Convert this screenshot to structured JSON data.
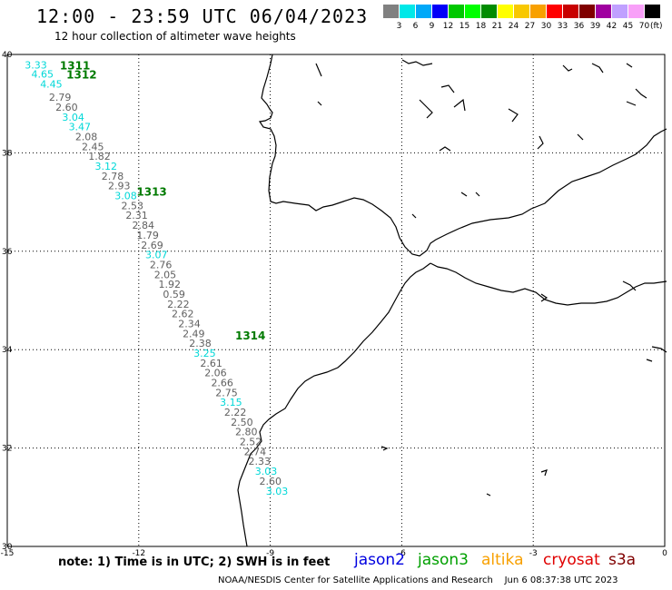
{
  "header": {
    "title": "12:00 - 23:59 UTC 06/04/2023",
    "subtitle": "12 hour collection of altimeter wave heights"
  },
  "legend": {
    "colors": [
      "#808080",
      "#00e8e8",
      "#00a8f8",
      "#0000f8",
      "#00c800",
      "#00ff00",
      "#008c00",
      "#ffff00",
      "#f8c800",
      "#f8a000",
      "#ff0000",
      "#c80000",
      "#800000",
      "#a000a0",
      "#c0a0ff",
      "#f8a0f8",
      "#000000"
    ],
    "labels": [
      "3",
      "6",
      "9",
      "12",
      "15",
      "18",
      "21",
      "24",
      "27",
      "30",
      "33",
      "36",
      "39",
      "42",
      "45",
      "70"
    ],
    "unit": "(ft)"
  },
  "axes": {
    "lon_labels": [
      "-15",
      "-12",
      "-9",
      "-6",
      "-3",
      "0"
    ],
    "lat_labels": [
      "40",
      "38",
      "36",
      "34",
      "32",
      "30"
    ],
    "lon_values": [
      -15,
      -12,
      -9,
      -6,
      -3,
      0
    ],
    "lat_values": [
      40,
      38,
      36,
      34,
      32,
      30
    ],
    "lon_range": [
      -15,
      0
    ],
    "lat_range": [
      30,
      40
    ],
    "grid": true
  },
  "times": [
    {
      "text": "1311",
      "lon": -13.8,
      "lat": 39.79,
      "color": "#007a00"
    },
    {
      "text": "1312",
      "lon": -13.65,
      "lat": 39.6,
      "color": "#007a00"
    },
    {
      "text": "1313",
      "lon": -12.05,
      "lat": 37.22,
      "color": "#007a00"
    },
    {
      "text": "1314",
      "lon": -9.8,
      "lat": 34.3,
      "color": "#007a00"
    }
  ],
  "wave_heights": [
    {
      "v": "3.33",
      "lon": -14.6,
      "lat": 39.79,
      "c": "#00d8d8"
    },
    {
      "v": "4.65",
      "lon": -14.45,
      "lat": 39.6,
      "c": "#00d8d8"
    },
    {
      "v": "4.45",
      "lon": -14.25,
      "lat": 39.4,
      "c": "#00d8d8"
    },
    {
      "v": "2.79",
      "lon": -14.05,
      "lat": 39.13,
      "c": "#606060"
    },
    {
      "v": "2.60",
      "lon": -13.9,
      "lat": 38.93,
      "c": "#606060"
    },
    {
      "v": "3.04",
      "lon": -13.75,
      "lat": 38.73,
      "c": "#00d8d8"
    },
    {
      "v": "3.47",
      "lon": -13.6,
      "lat": 38.53,
      "c": "#00d8d8"
    },
    {
      "v": "2.08",
      "lon": -13.45,
      "lat": 38.33,
      "c": "#606060"
    },
    {
      "v": "2.45",
      "lon": -13.3,
      "lat": 38.13,
      "c": "#606060"
    },
    {
      "v": "1.82",
      "lon": -13.15,
      "lat": 37.93,
      "c": "#606060"
    },
    {
      "v": "3.12",
      "lon": -13.0,
      "lat": 37.73,
      "c": "#00d8d8"
    },
    {
      "v": "2.78",
      "lon": -12.85,
      "lat": 37.53,
      "c": "#606060"
    },
    {
      "v": "2.93",
      "lon": -12.7,
      "lat": 37.33,
      "c": "#606060"
    },
    {
      "v": "3.08",
      "lon": -12.55,
      "lat": 37.13,
      "c": "#00d8d8"
    },
    {
      "v": "2.53",
      "lon": -12.4,
      "lat": 36.93,
      "c": "#606060"
    },
    {
      "v": "2.31",
      "lon": -12.3,
      "lat": 36.73,
      "c": "#606060"
    },
    {
      "v": "2.84",
      "lon": -12.15,
      "lat": 36.53,
      "c": "#606060"
    },
    {
      "v": "1.79",
      "lon": -12.05,
      "lat": 36.33,
      "c": "#606060"
    },
    {
      "v": "2.69",
      "lon": -11.95,
      "lat": 36.13,
      "c": "#606060"
    },
    {
      "v": "3.07",
      "lon": -11.85,
      "lat": 35.93,
      "c": "#00d8d8"
    },
    {
      "v": "2.76",
      "lon": -11.75,
      "lat": 35.73,
      "c": "#606060"
    },
    {
      "v": "2.05",
      "lon": -11.65,
      "lat": 35.53,
      "c": "#606060"
    },
    {
      "v": "1.92",
      "lon": -11.55,
      "lat": 35.33,
      "c": "#606060"
    },
    {
      "v": "0.59",
      "lon": -11.45,
      "lat": 35.13,
      "c": "#606060"
    },
    {
      "v": "2.22",
      "lon": -11.35,
      "lat": 34.93,
      "c": "#606060"
    },
    {
      "v": "2.62",
      "lon": -11.25,
      "lat": 34.73,
      "c": "#606060"
    },
    {
      "v": "2.34",
      "lon": -11.1,
      "lat": 34.53,
      "c": "#606060"
    },
    {
      "v": "2.49",
      "lon": -11.0,
      "lat": 34.33,
      "c": "#606060"
    },
    {
      "v": "2.38",
      "lon": -10.85,
      "lat": 34.13,
      "c": "#606060"
    },
    {
      "v": "3.25",
      "lon": -10.75,
      "lat": 33.93,
      "c": "#00d8d8"
    },
    {
      "v": "2.61",
      "lon": -10.6,
      "lat": 33.73,
      "c": "#606060"
    },
    {
      "v": "2.06",
      "lon": -10.5,
      "lat": 33.53,
      "c": "#606060"
    },
    {
      "v": "2.66",
      "lon": -10.35,
      "lat": 33.33,
      "c": "#606060"
    },
    {
      "v": "2.75",
      "lon": -10.25,
      "lat": 33.13,
      "c": "#606060"
    },
    {
      "v": "3.15",
      "lon": -10.15,
      "lat": 32.93,
      "c": "#00d8d8"
    },
    {
      "v": "2.22",
      "lon": -10.05,
      "lat": 32.73,
      "c": "#606060"
    },
    {
      "v": "2.50",
      "lon": -9.9,
      "lat": 32.53,
      "c": "#606060"
    },
    {
      "v": "2.80",
      "lon": -9.8,
      "lat": 32.33,
      "c": "#606060"
    },
    {
      "v": "2.52",
      "lon": -9.7,
      "lat": 32.13,
      "c": "#606060"
    },
    {
      "v": "2.74",
      "lon": -9.6,
      "lat": 31.93,
      "c": "#606060"
    },
    {
      "v": "2.33",
      "lon": -9.5,
      "lat": 31.73,
      "c": "#606060"
    },
    {
      "v": "3.03",
      "lon": -9.35,
      "lat": 31.53,
      "c": "#00d8d8"
    },
    {
      "v": "2.60",
      "lon": -9.25,
      "lat": 31.33,
      "c": "#606060"
    },
    {
      "v": "3.03",
      "lon": -9.1,
      "lat": 31.13,
      "c": "#00d8d8"
    }
  ],
  "note": "note: 1) Time is in UTC; 2) SWH is in feet",
  "satellites": [
    {
      "name": "jason2",
      "color": "#0000e0"
    },
    {
      "name": "jason3",
      "color": "#00a000"
    },
    {
      "name": "altika",
      "color": "#f8a000"
    },
    {
      "name": "cryosat",
      "color": "#e00000"
    },
    {
      "name": "s3a",
      "color": "#800000"
    }
  ],
  "footer": {
    "credit": "NOAA/NESDIS Center for Satellite Applications and Research",
    "timestamp": "Jun  6 08:37:38 UTC 2023"
  }
}
